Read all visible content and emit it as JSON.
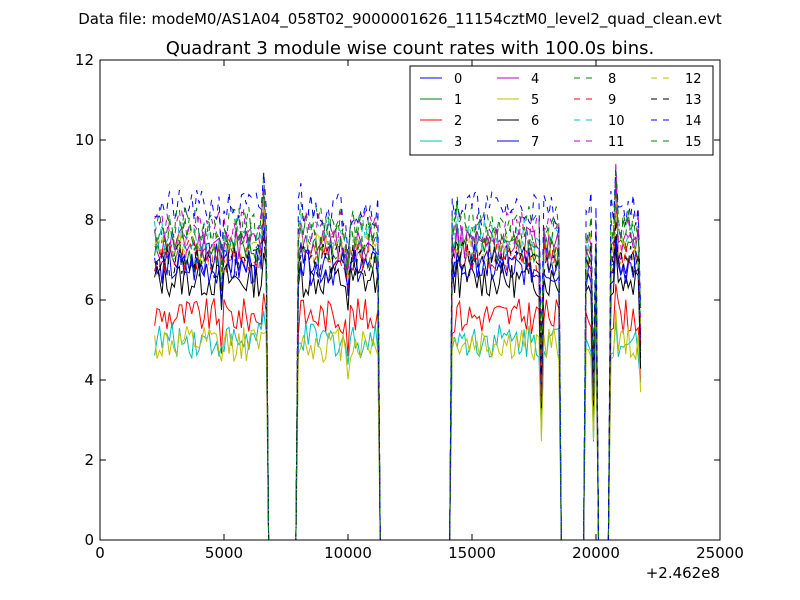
{
  "chart_data": {
    "type": "line",
    "suptitle": "Data file: modeM0/AS1A04_058T02_9000001626_11154cztM0_level2_quad_clean.evt",
    "title": "Quadrant 3 module wise count rates with 100.0s bins.",
    "xlabel": "",
    "ylabel": "",
    "x_offset_label": "+2.462e8",
    "xlim": [
      0,
      25000
    ],
    "ylim": [
      0,
      12
    ],
    "x_ticks": [
      {
        "value": 0,
        "label": "0"
      },
      {
        "value": 5000,
        "label": "5000"
      },
      {
        "value": 10000,
        "label": "10000"
      },
      {
        "value": 15000,
        "label": "15000"
      },
      {
        "value": 20000,
        "label": "20000"
      },
      {
        "value": 25000,
        "label": "25000"
      }
    ],
    "y_ticks": [
      {
        "value": 0,
        "label": "0"
      },
      {
        "value": 2,
        "label": "2"
      },
      {
        "value": 4,
        "label": "4"
      },
      {
        "value": 6,
        "label": "6"
      },
      {
        "value": 8,
        "label": "8"
      },
      {
        "value": 10,
        "label": "10"
      },
      {
        "value": 12,
        "label": "12"
      }
    ],
    "grid": false,
    "legend_position": "top-right",
    "legend_columns": 4,
    "x_bin_step": 100,
    "segments": [
      {
        "start": 2200,
        "end": 6700,
        "spike_at": 6600,
        "spike": 1.12,
        "dip_at": 4900,
        "dip": 0.9
      },
      {
        "start": 8000,
        "end": 11200,
        "spike_at": 8100,
        "spike": 1.05,
        "dip_at": 10000,
        "dip": 0.88
      },
      {
        "start": 14200,
        "end": 18500,
        "spike_at": 14400,
        "spike": 1.05,
        "dip_at": 17800,
        "dip": 0.55
      },
      {
        "start": 19600,
        "end": 20000,
        "spike_at": 19600,
        "spike": 0.95,
        "dip_at": 19900,
        "dip": 0.5
      },
      {
        "start": 20600,
        "end": 21800,
        "spike_at": 20800,
        "spike": 1.15,
        "dip_at": 21800,
        "dip": 0.7
      }
    ],
    "zero_ranges": [
      [
        6800,
        7900
      ],
      [
        11300,
        14100
      ],
      [
        18600,
        19500
      ],
      [
        20100,
        20500
      ]
    ],
    "series": [
      {
        "name": "0",
        "color": "#0000ff",
        "dashed": false,
        "level": 7.0
      },
      {
        "name": "1",
        "color": "#008000",
        "dashed": false,
        "level": 7.2
      },
      {
        "name": "2",
        "color": "#ff0000",
        "dashed": false,
        "level": 5.6
      },
      {
        "name": "3",
        "color": "#00bfbf",
        "dashed": false,
        "level": 5.0
      },
      {
        "name": "4",
        "color": "#bf00bf",
        "dashed": false,
        "level": 7.4
      },
      {
        "name": "5",
        "color": "#bfbf00",
        "dashed": false,
        "level": 4.9
      },
      {
        "name": "6",
        "color": "#000000",
        "dashed": false,
        "level": 6.5
      },
      {
        "name": "7",
        "color": "#0000ff",
        "dashed": false,
        "level": 6.8
      },
      {
        "name": "8",
        "color": "#008000",
        "dashed": true,
        "level": 7.9
      },
      {
        "name": "9",
        "color": "#ff0000",
        "dashed": true,
        "level": 7.1
      },
      {
        "name": "10",
        "color": "#00bfbf",
        "dashed": true,
        "level": 7.6
      },
      {
        "name": "11",
        "color": "#bf00bf",
        "dashed": true,
        "level": 7.8
      },
      {
        "name": "12",
        "color": "#bfbf00",
        "dashed": true,
        "level": 7.3
      },
      {
        "name": "13",
        "color": "#000000",
        "dashed": true,
        "level": 7.0
      },
      {
        "name": "14",
        "color": "#0000ff",
        "dashed": true,
        "level": 8.3
      },
      {
        "name": "15",
        "color": "#008000",
        "dashed": true,
        "level": 7.7
      }
    ]
  }
}
